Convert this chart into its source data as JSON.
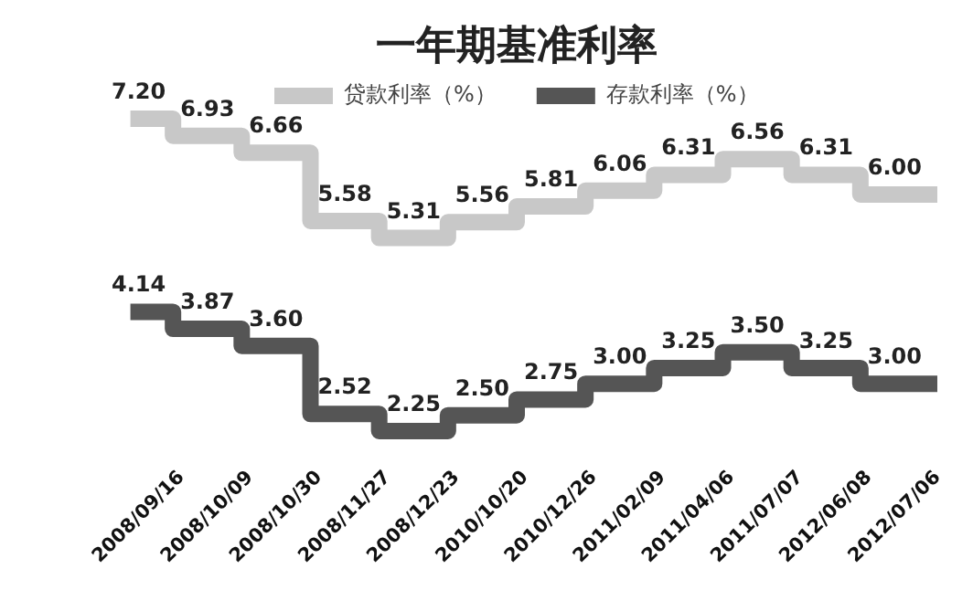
{
  "chart_data": {
    "type": "step",
    "title": "一年期基准利率",
    "categories": [
      "2008/09/16",
      "2008/10/09",
      "2008/10/30",
      "2008/11/27",
      "2008/12/23",
      "2010/10/20",
      "2010/12/26",
      "2011/02/09",
      "2011/04/06",
      "2011/07/07",
      "2012/06/08",
      "2012/07/06"
    ],
    "series": [
      {
        "name": "贷款利率（%）",
        "color": "#c8c8c8",
        "values": [
          7.2,
          6.93,
          6.66,
          5.58,
          5.31,
          5.56,
          5.81,
          6.06,
          6.31,
          6.56,
          6.31,
          6.0
        ],
        "value_labels": [
          "7.20",
          "6.93",
          "6.66",
          "5.58",
          "5.31",
          "5.56",
          "5.81",
          "6.06",
          "6.31",
          "6.56",
          "6.31",
          "6.00"
        ]
      },
      {
        "name": "存款利率（%）",
        "color": "#555555",
        "values": [
          4.14,
          3.87,
          3.6,
          2.52,
          2.25,
          2.5,
          2.75,
          3.0,
          3.25,
          3.5,
          3.25,
          3.0
        ],
        "value_labels": [
          "4.14",
          "3.87",
          "3.60",
          "2.52",
          "2.25",
          "2.50",
          "2.75",
          "3.00",
          "3.25",
          "3.50",
          "3.25",
          "3.00"
        ]
      }
    ],
    "legend": "top"
  }
}
